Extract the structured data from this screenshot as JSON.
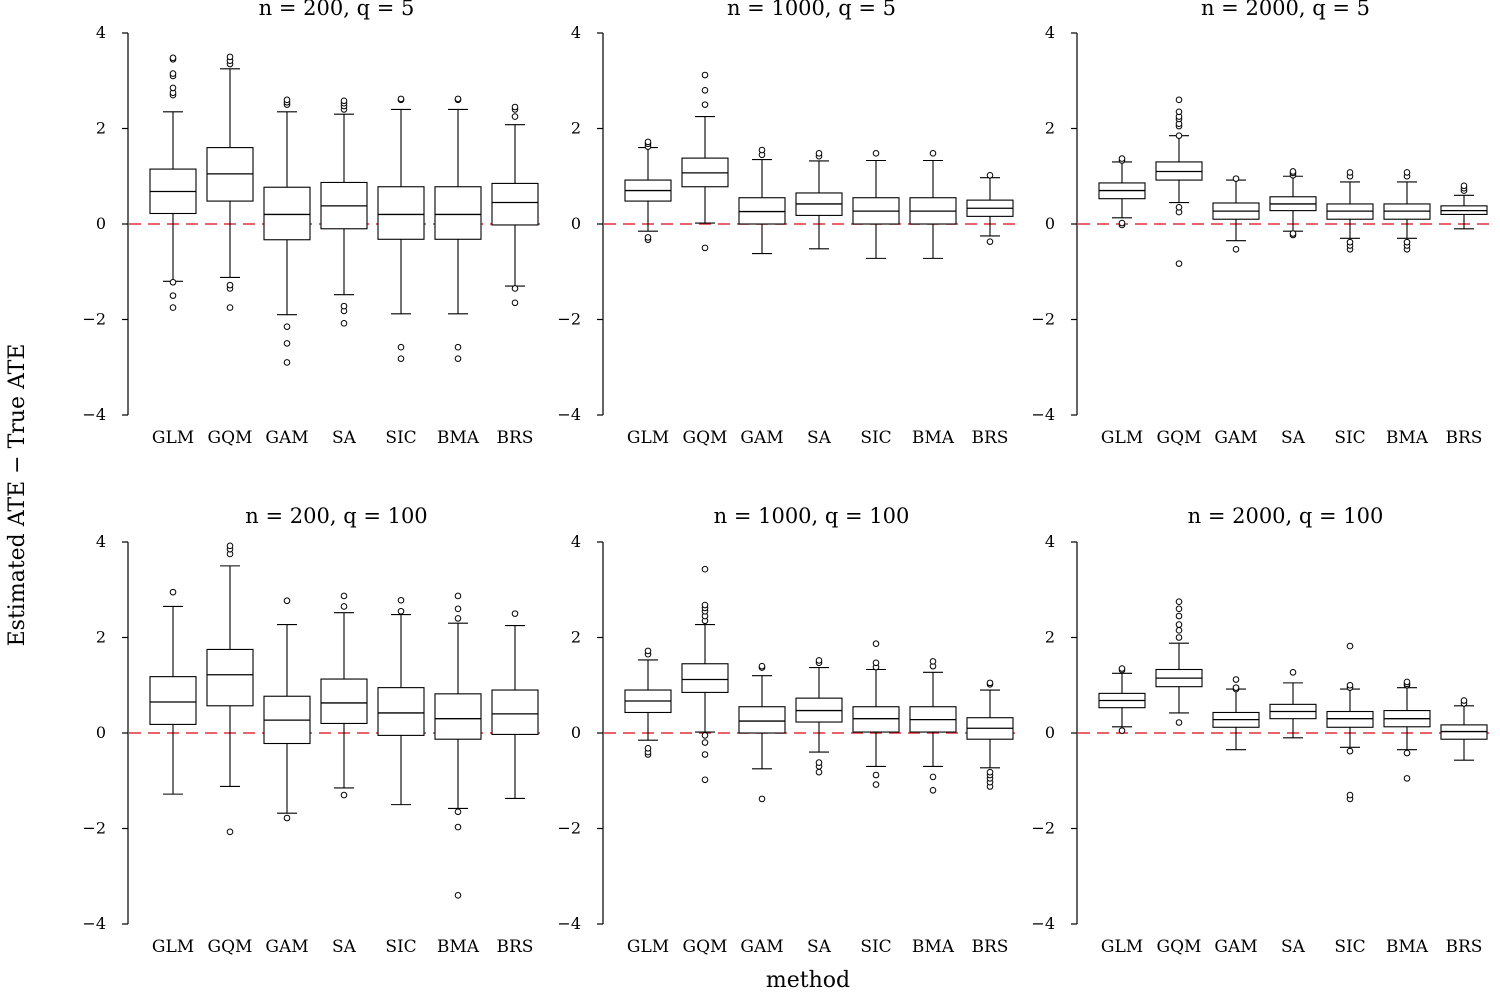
{
  "figure": {
    "ylabel": "Estimated ATE − True ATE",
    "xlabel": "method",
    "reference_line_color": "#e0303a"
  },
  "chart_data": [
    {
      "type": "box",
      "title": "n = 200, q = 5",
      "categories": [
        "GLM",
        "GQM",
        "GAM",
        "SA",
        "SIC",
        "BMA",
        "BRS"
      ],
      "ylim": [
        -4,
        4
      ],
      "yticks": [
        -4,
        -2,
        0,
        2,
        4
      ],
      "ytick_labels": [
        "−4",
        "−2",
        "0",
        "2",
        "4"
      ],
      "reference_line": 0,
      "boxes": [
        {
          "whisker_low": -1.2,
          "q1": 0.22,
          "median": 0.68,
          "q3": 1.15,
          "whisker_high": 2.35,
          "outliers": [
            -1.75,
            -1.5,
            -1.22,
            2.7,
            2.75,
            2.85,
            3.1,
            3.15,
            3.45,
            3.48
          ]
        },
        {
          "whisker_low": -1.12,
          "q1": 0.48,
          "median": 1.05,
          "q3": 1.6,
          "whisker_high": 3.25,
          "outliers": [
            -1.75,
            -1.35,
            -1.28,
            3.35,
            3.42,
            3.5
          ]
        },
        {
          "whisker_low": -1.9,
          "q1": -0.33,
          "median": 0.2,
          "q3": 0.77,
          "whisker_high": 2.35,
          "outliers": [
            -2.9,
            -2.5,
            -2.15,
            2.5,
            2.55,
            2.6
          ]
        },
        {
          "whisker_low": -1.48,
          "q1": -0.1,
          "median": 0.38,
          "q3": 0.87,
          "whisker_high": 2.3,
          "outliers": [
            -2.08,
            -1.82,
            -1.72,
            2.4,
            2.47,
            2.53,
            2.58
          ]
        },
        {
          "whisker_low": -1.88,
          "q1": -0.32,
          "median": 0.2,
          "q3": 0.78,
          "whisker_high": 2.4,
          "outliers": [
            -2.82,
            -2.58,
            2.6,
            2.62
          ]
        },
        {
          "whisker_low": -1.88,
          "q1": -0.32,
          "median": 0.2,
          "q3": 0.78,
          "whisker_high": 2.4,
          "outliers": [
            -2.82,
            -2.58,
            2.6,
            2.62
          ]
        },
        {
          "whisker_low": -1.3,
          "q1": -0.02,
          "median": 0.45,
          "q3": 0.85,
          "whisker_high": 2.08,
          "outliers": [
            -1.65,
            -1.35,
            2.25,
            2.4,
            2.45
          ]
        }
      ]
    },
    {
      "type": "box",
      "title": "n = 1000, q = 5",
      "categories": [
        "GLM",
        "GQM",
        "GAM",
        "SA",
        "SIC",
        "BMA",
        "BRS"
      ],
      "ylim": [
        -4,
        4
      ],
      "yticks": [
        -4,
        -2,
        0,
        2,
        4
      ],
      "ytick_labels": [
        "−4",
        "−2",
        "0",
        "2",
        "4"
      ],
      "reference_line": 0,
      "boxes": [
        {
          "whisker_low": -0.15,
          "q1": 0.48,
          "median": 0.7,
          "q3": 0.92,
          "whisker_high": 1.6,
          "outliers": [
            -0.33,
            -0.28,
            1.62,
            1.68,
            1.72
          ]
        },
        {
          "whisker_low": 0.02,
          "q1": 0.78,
          "median": 1.07,
          "q3": 1.38,
          "whisker_high": 2.25,
          "outliers": [
            -0.5,
            2.5,
            2.8,
            3.12
          ]
        },
        {
          "whisker_low": -0.62,
          "q1": 0.0,
          "median": 0.26,
          "q3": 0.55,
          "whisker_high": 1.35,
          "outliers": [
            1.45,
            1.55
          ]
        },
        {
          "whisker_low": -0.52,
          "q1": 0.18,
          "median": 0.42,
          "q3": 0.65,
          "whisker_high": 1.32,
          "outliers": [
            1.42,
            1.48
          ]
        },
        {
          "whisker_low": -0.72,
          "q1": 0.0,
          "median": 0.27,
          "q3": 0.55,
          "whisker_high": 1.33,
          "outliers": [
            1.48
          ]
        },
        {
          "whisker_low": -0.72,
          "q1": 0.0,
          "median": 0.27,
          "q3": 0.55,
          "whisker_high": 1.33,
          "outliers": [
            1.48
          ]
        },
        {
          "whisker_low": -0.25,
          "q1": 0.16,
          "median": 0.33,
          "q3": 0.5,
          "whisker_high": 0.97,
          "outliers": [
            -0.37,
            1.02
          ]
        }
      ]
    },
    {
      "type": "box",
      "title": "n = 2000, q = 5",
      "categories": [
        "GLM",
        "GQM",
        "GAM",
        "SA",
        "SIC",
        "BMA",
        "BRS"
      ],
      "ylim": [
        -4,
        4
      ],
      "yticks": [
        -4,
        -2,
        0,
        2,
        4
      ],
      "ytick_labels": [
        "−4",
        "−2",
        "0",
        "2",
        "4"
      ],
      "reference_line": 0,
      "boxes": [
        {
          "whisker_low": 0.13,
          "q1": 0.53,
          "median": 0.7,
          "q3": 0.86,
          "whisker_high": 1.3,
          "outliers": [
            -0.02,
            0.02,
            1.33,
            1.37
          ]
        },
        {
          "whisker_low": 0.45,
          "q1": 0.92,
          "median": 1.1,
          "q3": 1.3,
          "whisker_high": 1.85,
          "outliers": [
            -0.83,
            0.25,
            0.35,
            1.85,
            2.05,
            2.1,
            2.2,
            2.25,
            2.35,
            2.6
          ]
        },
        {
          "whisker_low": -0.35,
          "q1": 0.1,
          "median": 0.27,
          "q3": 0.44,
          "whisker_high": 0.92,
          "outliers": [
            -0.53,
            0.95
          ]
        },
        {
          "whisker_low": -0.15,
          "q1": 0.28,
          "median": 0.42,
          "q3": 0.57,
          "whisker_high": 1.0,
          "outliers": [
            -0.23,
            -0.2,
            1.02,
            1.07,
            1.1
          ]
        },
        {
          "whisker_low": -0.3,
          "q1": 0.1,
          "median": 0.27,
          "q3": 0.42,
          "whisker_high": 0.88,
          "outliers": [
            -0.53,
            -0.45,
            -0.38,
            1.0,
            1.08
          ]
        },
        {
          "whisker_low": -0.3,
          "q1": 0.1,
          "median": 0.27,
          "q3": 0.42,
          "whisker_high": 0.88,
          "outliers": [
            -0.53,
            -0.45,
            -0.38,
            1.0,
            1.08
          ]
        },
        {
          "whisker_low": -0.1,
          "q1": 0.2,
          "median": 0.28,
          "q3": 0.38,
          "whisker_high": 0.6,
          "outliers": [
            0.7,
            0.75,
            0.8
          ]
        }
      ]
    },
    {
      "type": "box",
      "title": "n = 200, q = 100",
      "categories": [
        "GLM",
        "GQM",
        "GAM",
        "SA",
        "SIC",
        "BMA",
        "BRS"
      ],
      "ylim": [
        -4,
        4
      ],
      "yticks": [
        -4,
        -2,
        0,
        2,
        4
      ],
      "ytick_labels": [
        "−4",
        "−2",
        "0",
        "2",
        "4"
      ],
      "reference_line": 0,
      "boxes": [
        {
          "whisker_low": -1.28,
          "q1": 0.18,
          "median": 0.65,
          "q3": 1.18,
          "whisker_high": 2.65,
          "outliers": [
            2.95
          ]
        },
        {
          "whisker_low": -1.12,
          "q1": 0.57,
          "median": 1.22,
          "q3": 1.75,
          "whisker_high": 3.5,
          "outliers": [
            -2.07,
            3.75,
            3.85,
            3.92
          ]
        },
        {
          "whisker_low": -1.68,
          "q1": -0.22,
          "median": 0.27,
          "q3": 0.77,
          "whisker_high": 2.27,
          "outliers": [
            -1.78,
            2.77
          ]
        },
        {
          "whisker_low": -1.15,
          "q1": 0.2,
          "median": 0.63,
          "q3": 1.13,
          "whisker_high": 2.52,
          "outliers": [
            -1.3,
            2.65,
            2.87
          ]
        },
        {
          "whisker_low": -1.5,
          "q1": -0.05,
          "median": 0.42,
          "q3": 0.95,
          "whisker_high": 2.48,
          "outliers": [
            2.55,
            2.78
          ]
        },
        {
          "whisker_low": -1.58,
          "q1": -0.13,
          "median": 0.3,
          "q3": 0.82,
          "whisker_high": 2.3,
          "outliers": [
            -3.4,
            -1.97,
            -1.65,
            2.4,
            2.6,
            2.87
          ]
        },
        {
          "whisker_low": -1.37,
          "q1": -0.03,
          "median": 0.4,
          "q3": 0.9,
          "whisker_high": 2.25,
          "outliers": [
            2.5
          ]
        }
      ]
    },
    {
      "type": "box",
      "title": "n = 1000, q = 100",
      "categories": [
        "GLM",
        "GQM",
        "GAM",
        "SA",
        "SIC",
        "BMA",
        "BRS"
      ],
      "ylim": [
        -4,
        4
      ],
      "yticks": [
        -4,
        -2,
        0,
        2,
        4
      ],
      "ytick_labels": [
        "−4",
        "−2",
        "0",
        "2",
        "4"
      ],
      "reference_line": 0,
      "boxes": [
        {
          "whisker_low": -0.15,
          "q1": 0.43,
          "median": 0.67,
          "q3": 0.9,
          "whisker_high": 1.53,
          "outliers": [
            -0.45,
            -0.4,
            -0.32,
            1.65,
            1.72
          ]
        },
        {
          "whisker_low": 0.02,
          "q1": 0.85,
          "median": 1.12,
          "q3": 1.45,
          "whisker_high": 2.27,
          "outliers": [
            -0.98,
            -0.45,
            -0.2,
            -0.05,
            2.35,
            2.45,
            2.55,
            2.62,
            2.68,
            3.43
          ]
        },
        {
          "whisker_low": -0.75,
          "q1": 0.0,
          "median": 0.25,
          "q3": 0.55,
          "whisker_high": 1.2,
          "outliers": [
            -1.38,
            1.37,
            1.4
          ]
        },
        {
          "whisker_low": -0.4,
          "q1": 0.23,
          "median": 0.47,
          "q3": 0.73,
          "whisker_high": 1.37,
          "outliers": [
            -0.82,
            -0.7,
            -0.62,
            1.47,
            1.52
          ]
        },
        {
          "whisker_low": -0.7,
          "q1": 0.02,
          "median": 0.3,
          "q3": 0.55,
          "whisker_high": 1.33,
          "outliers": [
            -1.08,
            -0.88,
            1.38,
            1.47,
            1.87
          ]
        },
        {
          "whisker_low": -0.7,
          "q1": 0.02,
          "median": 0.28,
          "q3": 0.55,
          "whisker_high": 1.27,
          "outliers": [
            -1.2,
            -0.92,
            1.4,
            1.5
          ]
        },
        {
          "whisker_low": -0.73,
          "q1": -0.13,
          "median": 0.1,
          "q3": 0.32,
          "whisker_high": 0.9,
          "outliers": [
            -1.12,
            -1.03,
            -0.95,
            -0.88,
            -0.82,
            1.02,
            1.05
          ]
        }
      ]
    },
    {
      "type": "box",
      "title": "n = 2000, q = 100",
      "categories": [
        "GLM",
        "GQM",
        "GAM",
        "SA",
        "SIC",
        "BMA",
        "BRS"
      ],
      "ylim": [
        -4,
        4
      ],
      "yticks": [
        -4,
        -2,
        0,
        2,
        4
      ],
      "ytick_labels": [
        "−4",
        "−2",
        "0",
        "2",
        "4"
      ],
      "reference_line": 0,
      "boxes": [
        {
          "whisker_low": 0.13,
          "q1": 0.53,
          "median": 0.68,
          "q3": 0.83,
          "whisker_high": 1.25,
          "outliers": [
            0.05,
            1.32,
            1.35
          ]
        },
        {
          "whisker_low": 0.42,
          "q1": 0.97,
          "median": 1.15,
          "q3": 1.33,
          "whisker_high": 1.88,
          "outliers": [
            0.22,
            2.0,
            2.15,
            2.27,
            2.45,
            2.6,
            2.75
          ]
        },
        {
          "whisker_low": -0.35,
          "q1": 0.12,
          "median": 0.28,
          "q3": 0.43,
          "whisker_high": 0.92,
          "outliers": [
            0.92,
            0.95,
            1.12
          ]
        },
        {
          "whisker_low": -0.1,
          "q1": 0.3,
          "median": 0.45,
          "q3": 0.6,
          "whisker_high": 1.05,
          "outliers": [
            1.27
          ]
        },
        {
          "whisker_low": -0.3,
          "q1": 0.12,
          "median": 0.3,
          "q3": 0.45,
          "whisker_high": 0.92,
          "outliers": [
            -1.38,
            -1.3,
            -0.38,
            0.95,
            1.0,
            1.82
          ]
        },
        {
          "whisker_low": -0.35,
          "q1": 0.13,
          "median": 0.3,
          "q3": 0.47,
          "whisker_high": 0.95,
          "outliers": [
            -0.95,
            -0.42,
            1.0,
            1.03,
            1.07
          ]
        },
        {
          "whisker_low": -0.57,
          "q1": -0.13,
          "median": 0.03,
          "q3": 0.17,
          "whisker_high": 0.57,
          "outliers": [
            0.62,
            0.68
          ]
        }
      ]
    }
  ]
}
